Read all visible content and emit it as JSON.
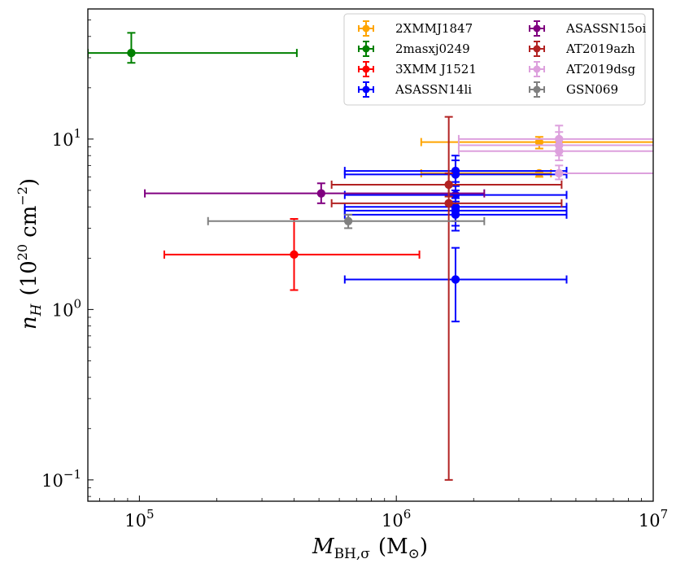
{
  "chart_data": {
    "type": "scatter",
    "title": "",
    "xlabel_main": "M",
    "xlabel_sub": "BH,σ",
    "xlabel_unit_open": "(M",
    "xlabel_unit_sub": "⊙",
    "xlabel_unit_close": ")",
    "ylabel_main": "n",
    "ylabel_sub": "H",
    "ylabel_unit": "(10",
    "ylabel_unit_exp": "20",
    "ylabel_unit_rest": "cm",
    "ylabel_unit_rest_exp": "−2",
    "ylabel_unit_close": ")",
    "xscale": "log",
    "yscale": "log",
    "xlim": [
      63000,
      10000000
    ],
    "ylim": [
      0.075,
      58
    ],
    "xticks": [
      {
        "value": 100000,
        "base": "10",
        "exp": "5"
      },
      {
        "value": 1000000,
        "base": "10",
        "exp": "6"
      },
      {
        "value": 10000000,
        "base": "10",
        "exp": "7"
      }
    ],
    "yticks": [
      {
        "value": 0.1,
        "base": "10",
        "exp": "−1"
      },
      {
        "value": 1,
        "base": "10",
        "exp": "0"
      },
      {
        "value": 10,
        "base": "10",
        "exp": "1"
      }
    ],
    "grid": false,
    "legend_position": "top-right",
    "series": [
      {
        "name": "2XMMJ1847",
        "color": "#ffa500",
        "points": [
          {
            "x": 3600000,
            "y": 9.6,
            "xerr": [
              1250000,
              20000000
            ],
            "yerr": [
              8.8,
              10.3
            ]
          },
          {
            "x": 3600000,
            "y": 6.3,
            "xerr": [
              1250000,
              4000000
            ],
            "yerr": [
              6.0,
              6.5
            ]
          }
        ]
      },
      {
        "name": "2masxj0249",
        "color": "#008000",
        "points": [
          {
            "x": 93000,
            "y": 32,
            "xerr": [
              63000,
              410000
            ],
            "yerr": [
              28,
              42
            ]
          }
        ]
      },
      {
        "name": "3XMM J1521",
        "color": "#ff0000",
        "points": [
          {
            "x": 400000,
            "y": 2.1,
            "xerr": [
              125000,
              1230000
            ],
            "yerr": [
              1.3,
              3.4
            ]
          }
        ]
      },
      {
        "name": "ASASSN14li",
        "color": "#0000ff",
        "points": [
          {
            "x": 1700000,
            "y": 6.5,
            "xerr": [
              630000,
              4600000
            ],
            "yerr": [
              5.3,
              8.0
            ]
          },
          {
            "x": 1700000,
            "y": 6.2,
            "xerr": [
              630000,
              4600000
            ],
            "yerr": [
              5.0,
              7.5
            ]
          },
          {
            "x": 1700000,
            "y": 4.7,
            "xerr": [
              630000,
              4600000
            ],
            "yerr": [
              3.9,
              5.6
            ]
          },
          {
            "x": 1700000,
            "y": 4.0,
            "xerr": [
              630000,
              4600000
            ],
            "yerr": [
              3.3,
              4.8
            ]
          },
          {
            "x": 1700000,
            "y": 3.8,
            "xerr": [
              630000,
              4600000
            ],
            "yerr": [
              3.1,
              4.5
            ]
          },
          {
            "x": 1700000,
            "y": 3.6,
            "xerr": [
              630000,
              4600000
            ],
            "yerr": [
              2.9,
              4.3
            ]
          },
          {
            "x": 1700000,
            "y": 1.5,
            "xerr": [
              630000,
              4600000
            ],
            "yerr": [
              0.85,
              2.3
            ]
          }
        ]
      },
      {
        "name": "ASASSN15oi",
        "color": "#800080",
        "points": [
          {
            "x": 510000,
            "y": 4.8,
            "xerr": [
              105000,
              2200000
            ],
            "yerr": [
              4.2,
              5.5
            ]
          }
        ]
      },
      {
        "name": "AT2019azh",
        "color": "#b22222",
        "points": [
          {
            "x": 1600000,
            "y": 5.4,
            "xerr": [
              560000,
              4400000
            ],
            "yerr": [
              4.6,
              6.3
            ]
          },
          {
            "x": 1600000,
            "y": 4.2,
            "xerr": [
              560000,
              4400000
            ],
            "yerr": [
              0.1,
              13.5
            ]
          }
        ]
      },
      {
        "name": "AT2019dsg",
        "color": "#dda0dd",
        "points": [
          {
            "x": 4300000,
            "y": 10.0,
            "xerr": [
              1750000,
              20000000
            ],
            "yerr": [
              8.5,
              12.0
            ]
          },
          {
            "x": 4300000,
            "y": 9.2,
            "xerr": [
              1750000,
              20000000
            ],
            "yerr": [
              8.0,
              11.0
            ]
          },
          {
            "x": 4300000,
            "y": 8.5,
            "xerr": [
              1750000,
              20000000
            ],
            "yerr": [
              7.5,
              10.0
            ]
          },
          {
            "x": 4300000,
            "y": 6.3,
            "xerr": [
              4300000,
              20000000
            ],
            "yerr": [
              5.8,
              7.0
            ]
          }
        ]
      },
      {
        "name": "GSN069",
        "color": "#808080",
        "points": [
          {
            "x": 650000,
            "y": 3.3,
            "xerr": [
              185000,
              2200000
            ],
            "yerr": [
              3.0,
              3.6
            ]
          }
        ]
      }
    ]
  }
}
